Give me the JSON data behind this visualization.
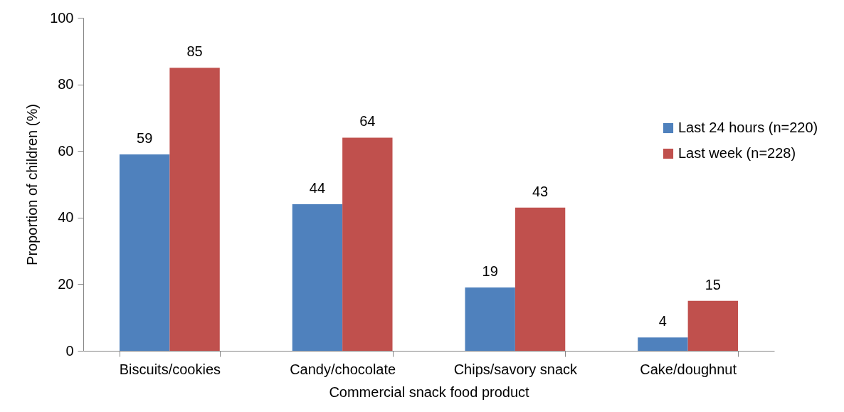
{
  "chart_data": {
    "type": "bar",
    "xlabel": "Commercial snack food product",
    "ylabel": "Proportion of children (%)",
    "categories": [
      "Biscuits/cookies",
      "Candy/chocolate",
      "Chips/savory snack",
      "Cake/doughnut"
    ],
    "series": [
      {
        "name": "Last 24 hours (n=220)",
        "color": "#4f81bd",
        "values": [
          59,
          44,
          19,
          4
        ]
      },
      {
        "name": "Last week (n=228)",
        "color": "#c0504d",
        "values": [
          85,
          64,
          43,
          15
        ]
      }
    ],
    "ylim": [
      0,
      100
    ],
    "yticks": [
      0,
      20,
      40,
      60,
      80,
      100
    ],
    "data_labels": true,
    "legend": "right"
  }
}
